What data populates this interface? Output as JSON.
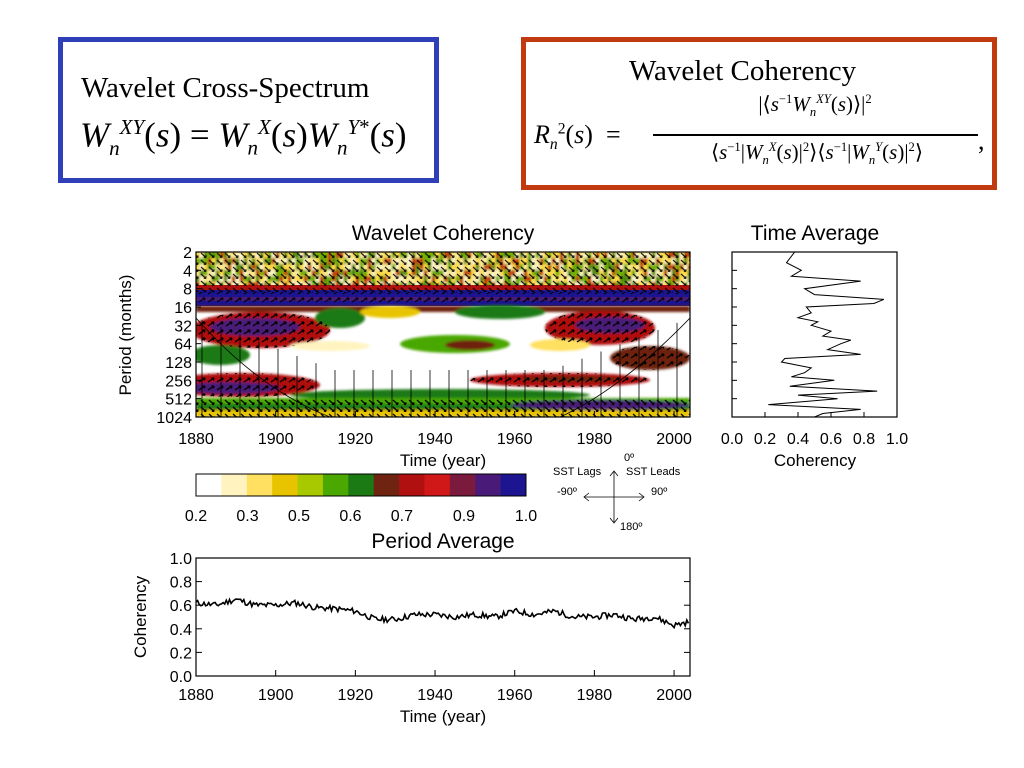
{
  "cross_box": {
    "title": "Wavelet Cross-Spectrum"
  },
  "coh_box": {
    "title": "Wavelet Coherency"
  },
  "chart_data": [
    {
      "type": "heatmap",
      "title": "Wavelet Coherency",
      "xlabel": "Time (year)",
      "ylabel": "Period (months)",
      "xlim": [
        1880,
        2004
      ],
      "x_ticks": [
        1880,
        1900,
        1920,
        1940,
        1960,
        1980,
        2000
      ],
      "y_ticks": [
        2,
        4,
        8,
        16,
        32,
        64,
        128,
        256,
        512,
        1024
      ],
      "y_scale": "log2",
      "colorbar": {
        "ticks": [
          0.2,
          0.3,
          0.5,
          0.6,
          0.7,
          0.9,
          1.0
        ],
        "colors": [
          "#ffffff",
          "#fff4c0",
          "#ffe060",
          "#e8c400",
          "#a8c800",
          "#4aa800",
          "#1c7a14",
          "#6e2410",
          "#b01010",
          "#d01818",
          "#7a1a3c",
          "#4a1a78",
          "#1c1490"
        ]
      },
      "phase_legend": {
        "up": "0º",
        "left": "-90º",
        "right": "90º",
        "down": "180º",
        "left_label": "SST Lags",
        "right_label": "SST Leads"
      }
    },
    {
      "type": "line",
      "title": "Time Average",
      "xlabel": "Coherency",
      "xlim": [
        0.0,
        1.0
      ],
      "x_ticks": [
        "0.0",
        "0.2",
        "0.4",
        "0.6",
        "0.8",
        "1.0"
      ],
      "period": [
        2,
        3,
        4,
        5,
        6,
        8,
        10,
        12,
        14,
        16,
        20,
        24,
        28,
        32,
        40,
        48,
        56,
        64,
        80,
        96,
        112,
        128,
        160,
        192,
        224,
        256,
        320,
        384,
        448,
        512,
        640,
        768,
        896,
        1024
      ],
      "coherency": [
        0.38,
        0.33,
        0.42,
        0.36,
        0.78,
        0.44,
        0.5,
        0.92,
        0.86,
        0.45,
        0.48,
        0.4,
        0.52,
        0.48,
        0.6,
        0.55,
        0.72,
        0.66,
        0.58,
        0.78,
        0.32,
        0.3,
        0.48,
        0.44,
        0.36,
        0.62,
        0.35,
        0.88,
        0.4,
        0.64,
        0.22,
        0.78,
        0.55,
        0.5
      ]
    },
    {
      "type": "line",
      "title": "Period Average",
      "xlabel": "Time (year)",
      "ylabel": "Coherency",
      "xlim": [
        1880,
        2004
      ],
      "ylim": [
        0.0,
        1.0
      ],
      "x_ticks": [
        1880,
        1900,
        1920,
        1940,
        1960,
        1980,
        2000
      ],
      "y_ticks": [
        "0.0",
        "0.2",
        "0.4",
        "0.6",
        "0.8",
        "1.0"
      ],
      "x": [
        1880,
        1885,
        1890,
        1895,
        1900,
        1905,
        1910,
        1915,
        1920,
        1925,
        1930,
        1935,
        1940,
        1945,
        1950,
        1955,
        1960,
        1965,
        1970,
        1975,
        1980,
        1985,
        1990,
        1995,
        2000,
        2004
      ],
      "y": [
        0.62,
        0.6,
        0.65,
        0.6,
        0.6,
        0.62,
        0.58,
        0.57,
        0.55,
        0.48,
        0.48,
        0.52,
        0.52,
        0.5,
        0.52,
        0.5,
        0.55,
        0.52,
        0.55,
        0.5,
        0.5,
        0.52,
        0.48,
        0.5,
        0.43,
        0.46
      ]
    }
  ]
}
